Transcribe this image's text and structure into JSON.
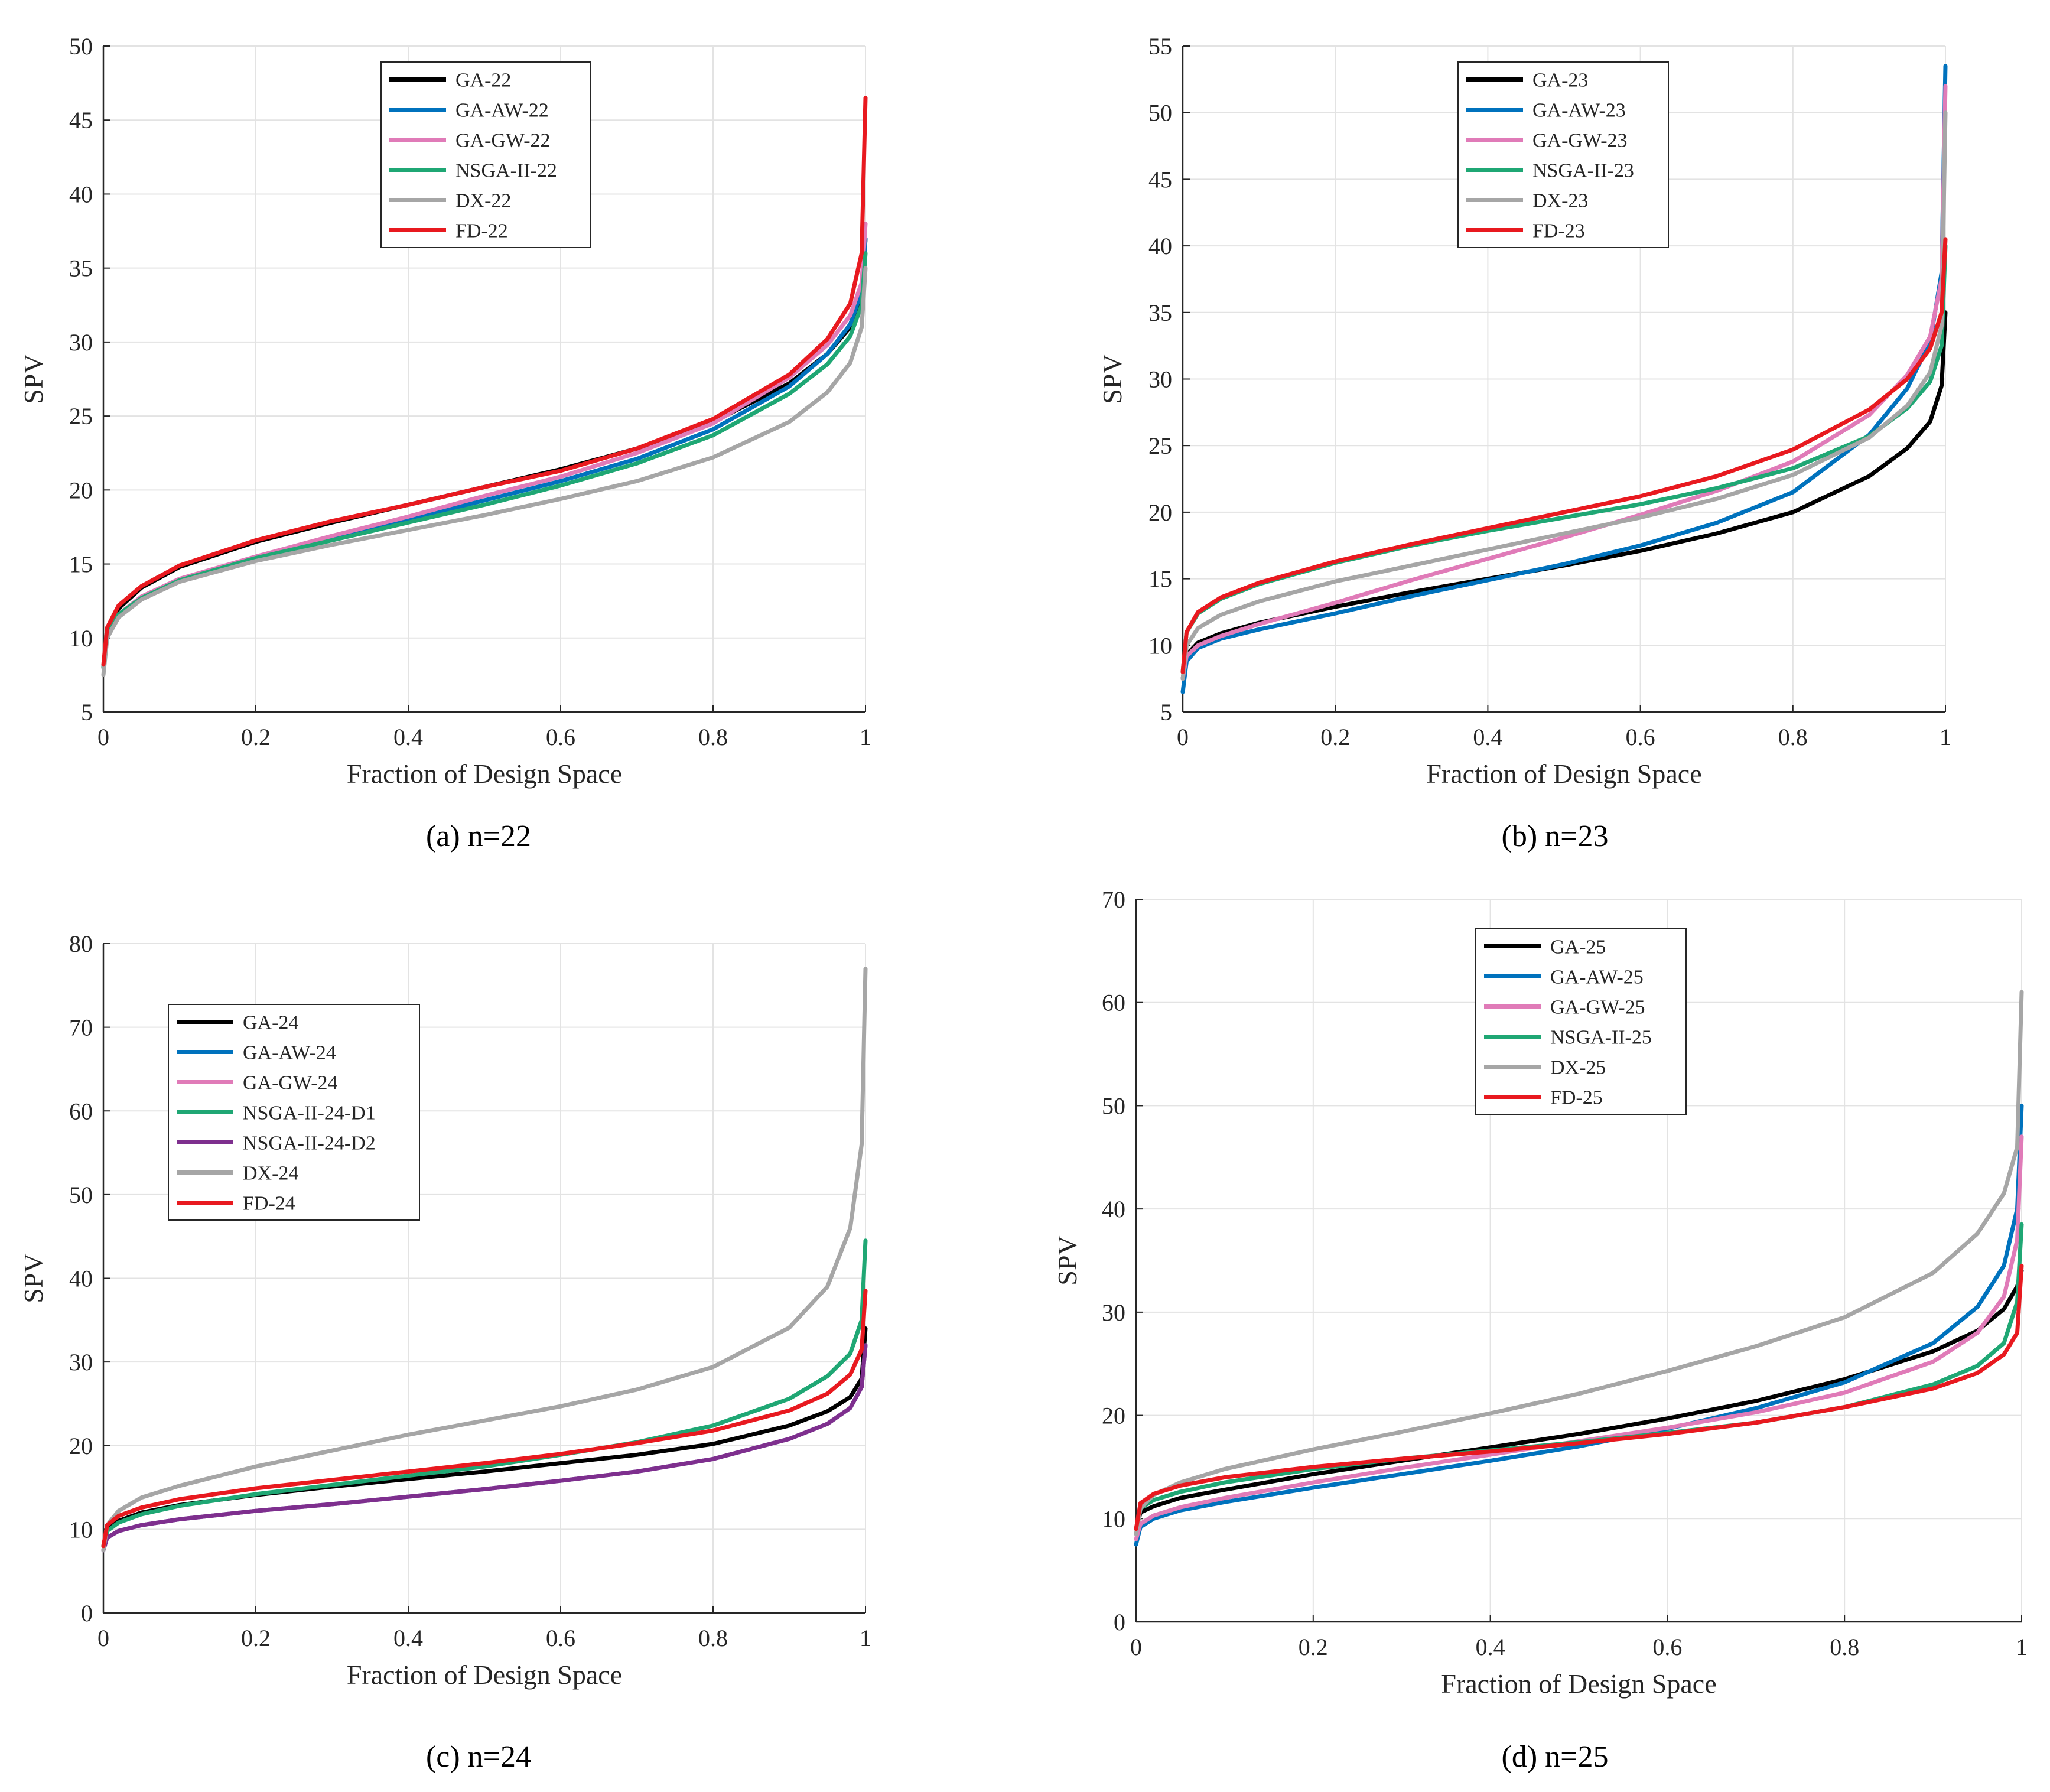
{
  "figure": {
    "captions": [
      "(a) n=22",
      "(b) n=23",
      "(c) n=24",
      "(d) n=25"
    ]
  },
  "chart_data": [
    {
      "type": "line",
      "panel": "a",
      "caption": "(a) n=22",
      "xlabel": "Fraction of Design Space",
      "ylabel": "SPV",
      "xlim": [
        0,
        1
      ],
      "ylim": [
        5,
        50
      ],
      "xticks": [
        0,
        0.2,
        0.4,
        0.6,
        0.8,
        1
      ],
      "xtick_labels": [
        "0",
        "0.2",
        "0.4",
        "0.6",
        "0.8",
        "1"
      ],
      "yticks": [
        5,
        10,
        15,
        20,
        25,
        30,
        35,
        40,
        45,
        50
      ],
      "ytick_labels": [
        "5",
        "10",
        "15",
        "20",
        "25",
        "30",
        "35",
        "40",
        "45",
        "50"
      ],
      "grid": true,
      "legend_position": "top-center",
      "x": [
        0,
        0.005,
        0.02,
        0.05,
        0.1,
        0.2,
        0.3,
        0.4,
        0.5,
        0.6,
        0.7,
        0.8,
        0.9,
        0.95,
        0.98,
        0.995,
        1
      ],
      "series": [
        {
          "name": "GA-22",
          "color": "#000000",
          "values": [
            8,
            10.5,
            12,
            13.4,
            14.8,
            16.5,
            17.8,
            19,
            20.2,
            21.4,
            22.8,
            24.6,
            27.2,
            29.2,
            31,
            33,
            37
          ]
        },
        {
          "name": "GA-AW-22",
          "color": "#0072bd",
          "values": [
            8,
            10.2,
            11.5,
            12.7,
            13.9,
            15.4,
            16.7,
            18,
            19.3,
            20.6,
            22.1,
            24.1,
            27,
            29.2,
            31.2,
            33.4,
            37
          ]
        },
        {
          "name": "GA-GW-22",
          "color": "#e07bb8",
          "values": [
            8,
            10.2,
            11.6,
            12.8,
            14,
            15.5,
            16.9,
            18.2,
            19.6,
            20.9,
            22.5,
            24.5,
            27.6,
            29.8,
            31.8,
            34,
            38
          ]
        },
        {
          "name": "NSGA-II-22",
          "color": "#1fa774",
          "values": [
            8,
            10.2,
            11.6,
            12.7,
            13.9,
            15.4,
            16.6,
            17.8,
            19,
            20.3,
            21.8,
            23.7,
            26.5,
            28.5,
            30.4,
            32.5,
            36
          ]
        },
        {
          "name": "DX-22",
          "color": "#a6a6a6",
          "values": [
            7.5,
            10,
            11.4,
            12.6,
            13.8,
            15.2,
            16.3,
            17.3,
            18.3,
            19.4,
            20.6,
            22.2,
            24.6,
            26.6,
            28.6,
            31,
            35
          ]
        },
        {
          "name": "FD-22",
          "color": "#e8191f",
          "values": [
            8.2,
            10.7,
            12.2,
            13.5,
            14.9,
            16.6,
            17.9,
            19,
            20.2,
            21.3,
            22.8,
            24.8,
            27.8,
            30.2,
            32.6,
            36,
            46.5
          ]
        }
      ]
    },
    {
      "type": "line",
      "panel": "b",
      "caption": "(b) n=23",
      "xlabel": "Fraction of Design Space",
      "ylabel": "SPV",
      "xlim": [
        0,
        1
      ],
      "ylim": [
        5,
        55
      ],
      "xticks": [
        0,
        0.2,
        0.4,
        0.6,
        0.8,
        1
      ],
      "xtick_labels": [
        "0",
        "0.2",
        "0.4",
        "0.6",
        "0.8",
        "1"
      ],
      "yticks": [
        5,
        10,
        15,
        20,
        25,
        30,
        35,
        40,
        45,
        50,
        55
      ],
      "ytick_labels": [
        "5",
        "10",
        "15",
        "20",
        "25",
        "30",
        "35",
        "40",
        "45",
        "50",
        "55"
      ],
      "grid": true,
      "legend_position": "top-center",
      "x": [
        0,
        0.005,
        0.02,
        0.05,
        0.1,
        0.2,
        0.3,
        0.4,
        0.5,
        0.6,
        0.7,
        0.8,
        0.9,
        0.95,
        0.98,
        0.995,
        1
      ],
      "series": [
        {
          "name": "GA-23",
          "color": "#000000",
          "values": [
            7.5,
            9.3,
            10.2,
            10.9,
            11.7,
            12.9,
            14,
            15,
            16,
            17.1,
            18.4,
            20,
            22.7,
            24.8,
            26.8,
            29.5,
            35
          ]
        },
        {
          "name": "GA-AW-23",
          "color": "#0072bd",
          "values": [
            6.5,
            8.8,
            9.8,
            10.5,
            11.2,
            12.4,
            13.7,
            14.9,
            16.1,
            17.5,
            19.2,
            21.5,
            25.8,
            29.3,
            32.8,
            38,
            53.5
          ]
        },
        {
          "name": "GA-GW-23",
          "color": "#e07bb8",
          "values": [
            7.5,
            9.2,
            10,
            10.7,
            11.6,
            13.2,
            14.9,
            16.5,
            18.1,
            19.8,
            21.6,
            23.8,
            27.3,
            30.3,
            33.2,
            37.5,
            52
          ]
        },
        {
          "name": "NSGA-II-23",
          "color": "#1fa774",
          "values": [
            8,
            11,
            12.4,
            13.5,
            14.6,
            16.2,
            17.5,
            18.6,
            19.6,
            20.6,
            21.8,
            23.3,
            25.7,
            27.8,
            29.8,
            32.5,
            40
          ]
        },
        {
          "name": "DX-23",
          "color": "#a6a6a6",
          "values": [
            7.5,
            10,
            11.3,
            12.3,
            13.3,
            14.8,
            16,
            17.2,
            18.4,
            19.6,
            21,
            22.8,
            25.6,
            28,
            30.5,
            34,
            50
          ]
        },
        {
          "name": "FD-23",
          "color": "#e8191f",
          "values": [
            8,
            11,
            12.5,
            13.6,
            14.7,
            16.3,
            17.6,
            18.8,
            20,
            21.2,
            22.7,
            24.7,
            27.7,
            30,
            32.3,
            35,
            40.5
          ]
        }
      ]
    },
    {
      "type": "line",
      "panel": "c",
      "caption": "(c) n=24",
      "xlabel": "Fraction of Design Space",
      "ylabel": "SPV",
      "xlim": [
        0,
        1
      ],
      "ylim": [
        0,
        80
      ],
      "xticks": [
        0,
        0.2,
        0.4,
        0.6,
        0.8,
        1
      ],
      "xtick_labels": [
        "0",
        "0.2",
        "0.4",
        "0.6",
        "0.8",
        "1"
      ],
      "yticks": [
        0,
        10,
        20,
        30,
        40,
        50,
        60,
        70,
        80
      ],
      "ytick_labels": [
        "0",
        "10",
        "20",
        "30",
        "40",
        "50",
        "60",
        "70",
        "80"
      ],
      "grid": true,
      "legend_position": "top-left",
      "x": [
        0,
        0.005,
        0.02,
        0.05,
        0.1,
        0.2,
        0.3,
        0.4,
        0.5,
        0.6,
        0.7,
        0.8,
        0.9,
        0.95,
        0.98,
        0.995,
        1
      ],
      "series": [
        {
          "name": "GA-24",
          "color": "#000000",
          "values": [
            8,
            10,
            11,
            12,
            12.9,
            14.1,
            15.1,
            16,
            16.9,
            17.9,
            18.9,
            20.2,
            22.4,
            24.1,
            25.8,
            28,
            34
          ]
        },
        {
          "name": "GA-AW-24",
          "color": "#0072bd",
          "values": [
            7.5,
            9,
            9.8,
            10.5,
            11.2,
            12.2,
            13,
            13.9,
            14.8,
            15.8,
            16.9,
            18.4,
            20.8,
            22.6,
            24.5,
            27,
            32
          ]
        },
        {
          "name": "GA-GW-24",
          "color": "#e07bb8",
          "values": [
            7.5,
            9,
            9.8,
            10.5,
            11.2,
            12.2,
            13,
            13.9,
            14.8,
            15.8,
            16.9,
            18.4,
            20.8,
            22.6,
            24.5,
            27,
            32
          ]
        },
        {
          "name": "NSGA-II-24-D1",
          "color": "#1fa774",
          "values": [
            8,
            9.8,
            10.8,
            11.8,
            12.8,
            14.2,
            15.3,
            16.4,
            17.5,
            18.9,
            20.4,
            22.4,
            25.6,
            28.3,
            31,
            35,
            44.5
          ]
        },
        {
          "name": "NSGA-II-24-D2",
          "color": "#7e2f8e",
          "values": [
            7.5,
            9,
            9.8,
            10.5,
            11.2,
            12.2,
            13,
            13.9,
            14.8,
            15.8,
            16.9,
            18.4,
            20.8,
            22.6,
            24.5,
            27,
            32
          ]
        },
        {
          "name": "DX-24",
          "color": "#a6a6a6",
          "values": [
            7.5,
            10.5,
            12.2,
            13.8,
            15.2,
            17.5,
            19.4,
            21.3,
            23,
            24.7,
            26.7,
            29.4,
            34.1,
            39,
            46,
            56,
            77
          ]
        },
        {
          "name": "FD-24",
          "color": "#e8191f",
          "values": [
            8,
            10.5,
            11.6,
            12.6,
            13.6,
            14.9,
            15.9,
            16.9,
            17.9,
            19,
            20.3,
            21.8,
            24.2,
            26.2,
            28.5,
            31.5,
            38.5
          ]
        }
      ]
    },
    {
      "type": "line",
      "panel": "d",
      "caption": "(d) n=25",
      "xlabel": "Fraction of Design Space",
      "ylabel": "SPV",
      "xlim": [
        0,
        1
      ],
      "ylim": [
        0,
        70
      ],
      "xticks": [
        0,
        0.2,
        0.4,
        0.6,
        0.8,
        1
      ],
      "xtick_labels": [
        "0",
        "0.2",
        "0.4",
        "0.6",
        "0.8",
        "1"
      ],
      "yticks": [
        0,
        10,
        20,
        30,
        40,
        50,
        60,
        70
      ],
      "ytick_labels": [
        "0",
        "10",
        "20",
        "30",
        "40",
        "50",
        "60",
        "70"
      ],
      "grid": true,
      "legend_position": "top-center",
      "x": [
        0,
        0.005,
        0.02,
        0.05,
        0.1,
        0.2,
        0.3,
        0.4,
        0.5,
        0.6,
        0.7,
        0.8,
        0.9,
        0.95,
        0.98,
        0.995,
        1
      ],
      "series": [
        {
          "name": "GA-25",
          "color": "#000000",
          "values": [
            9,
            10.6,
            11.2,
            12,
            12.8,
            14.3,
            15.6,
            16.9,
            18.2,
            19.7,
            21.4,
            23.5,
            26.2,
            28.2,
            30.3,
            32.5,
            34
          ]
        },
        {
          "name": "GA-AW-25",
          "color": "#0072bd",
          "values": [
            7.5,
            9.2,
            10,
            10.8,
            11.6,
            13,
            14.3,
            15.6,
            17,
            18.7,
            20.7,
            23.2,
            27,
            30.5,
            34.5,
            40,
            50
          ]
        },
        {
          "name": "GA-GW-25",
          "color": "#e07bb8",
          "values": [
            8,
            9.5,
            10.3,
            11.1,
            12,
            13.5,
            14.9,
            16.2,
            17.5,
            18.8,
            20.3,
            22.2,
            25.2,
            28,
            31.5,
            37,
            47
          ]
        },
        {
          "name": "NSGA-II-25",
          "color": "#1fa774",
          "values": [
            9,
            11,
            11.8,
            12.6,
            13.5,
            14.8,
            15.8,
            16.6,
            17.4,
            18.3,
            19.3,
            20.8,
            23,
            24.8,
            27,
            31,
            38.5
          ]
        },
        {
          "name": "DX-25",
          "color": "#a6a6a6",
          "values": [
            8.5,
            11,
            12.3,
            13.5,
            14.8,
            16.7,
            18.4,
            20.2,
            22.1,
            24.3,
            26.7,
            29.5,
            33.8,
            37.6,
            41.5,
            46,
            61
          ]
        },
        {
          "name": "FD-25",
          "color": "#e8191f",
          "values": [
            9,
            11.5,
            12.4,
            13.2,
            14,
            15,
            15.8,
            16.5,
            17.3,
            18.2,
            19.3,
            20.8,
            22.6,
            24.1,
            25.9,
            28,
            34.5
          ]
        }
      ]
    }
  ]
}
